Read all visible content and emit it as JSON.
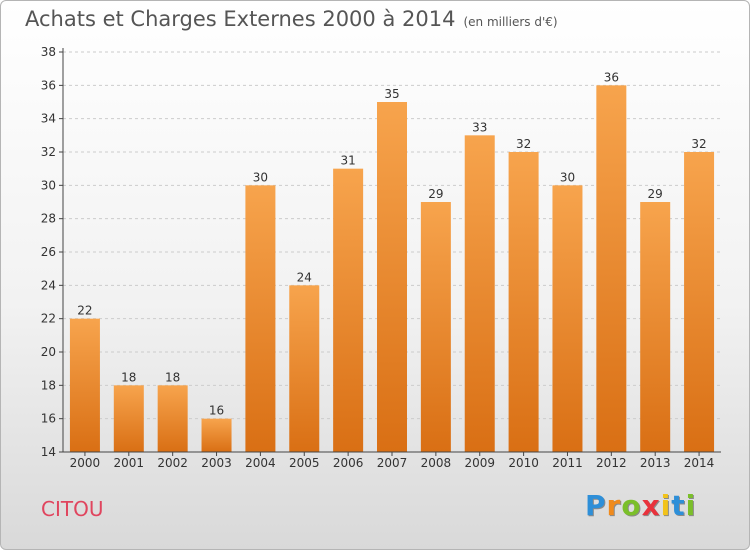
{
  "header": {
    "title": "Achats et Charges Externes 2000 à 2014",
    "subtitle": "(en milliers d'€)"
  },
  "footer": {
    "location": "CITOU",
    "logo": "Proxiti"
  },
  "colors": {
    "bar_light": "#f7a44d",
    "bar_dark": "#d96f14",
    "axis": "#444444",
    "grid": "#cccccc",
    "location": "#e0455e"
  },
  "chart_data": {
    "type": "bar",
    "categories": [
      "2000",
      "2001",
      "2002",
      "2003",
      "2004",
      "2005",
      "2006",
      "2007",
      "2008",
      "2009",
      "2010",
      "2011",
      "2012",
      "2013",
      "2014"
    ],
    "values": [
      22,
      18,
      18,
      16,
      30,
      24,
      31,
      35,
      29,
      33,
      32,
      30,
      36,
      29,
      32
    ],
    "ylim": [
      14,
      38
    ],
    "yticks": [
      14,
      16,
      18,
      20,
      22,
      24,
      26,
      28,
      30,
      32,
      34,
      36,
      38
    ],
    "grid": "horizontal dashed",
    "data_labels": true
  }
}
